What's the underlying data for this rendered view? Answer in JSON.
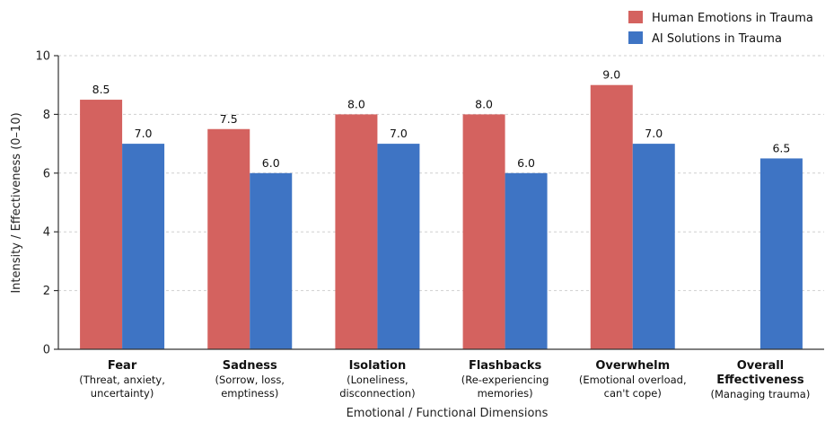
{
  "chart_data": {
    "type": "bar",
    "title": "",
    "xlabel": "Emotional / Functional Dimensions",
    "ylabel": "Intensity / Effectiveness (0–10)",
    "ylim": [
      0,
      10
    ],
    "yticks": [
      "0",
      "2",
      "4",
      "6",
      "8",
      "10"
    ],
    "grid": true,
    "legend_position": "top-right",
    "categories": [
      {
        "title": "Fear",
        "sub": [
          "(Threat, anxiety,",
          "uncertainty)"
        ]
      },
      {
        "title": "Sadness",
        "sub": [
          "(Sorrow, loss,",
          "emptiness)"
        ]
      },
      {
        "title": "Isolation",
        "sub": [
          "(Loneliness,",
          "disconnection)"
        ]
      },
      {
        "title": "Flashbacks",
        "sub": [
          "(Re-experiencing",
          "memories)"
        ]
      },
      {
        "title": "Overwhelm",
        "sub": [
          "(Emotional overload,",
          "can't cope)"
        ]
      },
      {
        "title": "Overall Effectiveness",
        "title_lines": [
          "Overall",
          "Effectiveness"
        ],
        "sub": [
          "(Managing trauma)"
        ]
      }
    ],
    "series": [
      {
        "name": "Human Emotions in Trauma",
        "color": "#d4625f",
        "values": [
          8.5,
          7.5,
          8.0,
          8.0,
          9.0,
          null
        ],
        "labels": [
          "8.5",
          "7.5",
          "8.0",
          "8.0",
          "9.0",
          ""
        ]
      },
      {
        "name": "AI Solutions in Trauma",
        "color": "#3e74c4",
        "values": [
          7.0,
          6.0,
          7.0,
          6.0,
          7.0,
          6.5
        ],
        "labels": [
          "7.0",
          "6.0",
          "7.0",
          "6.0",
          "7.0",
          "6.5"
        ]
      }
    ]
  }
}
